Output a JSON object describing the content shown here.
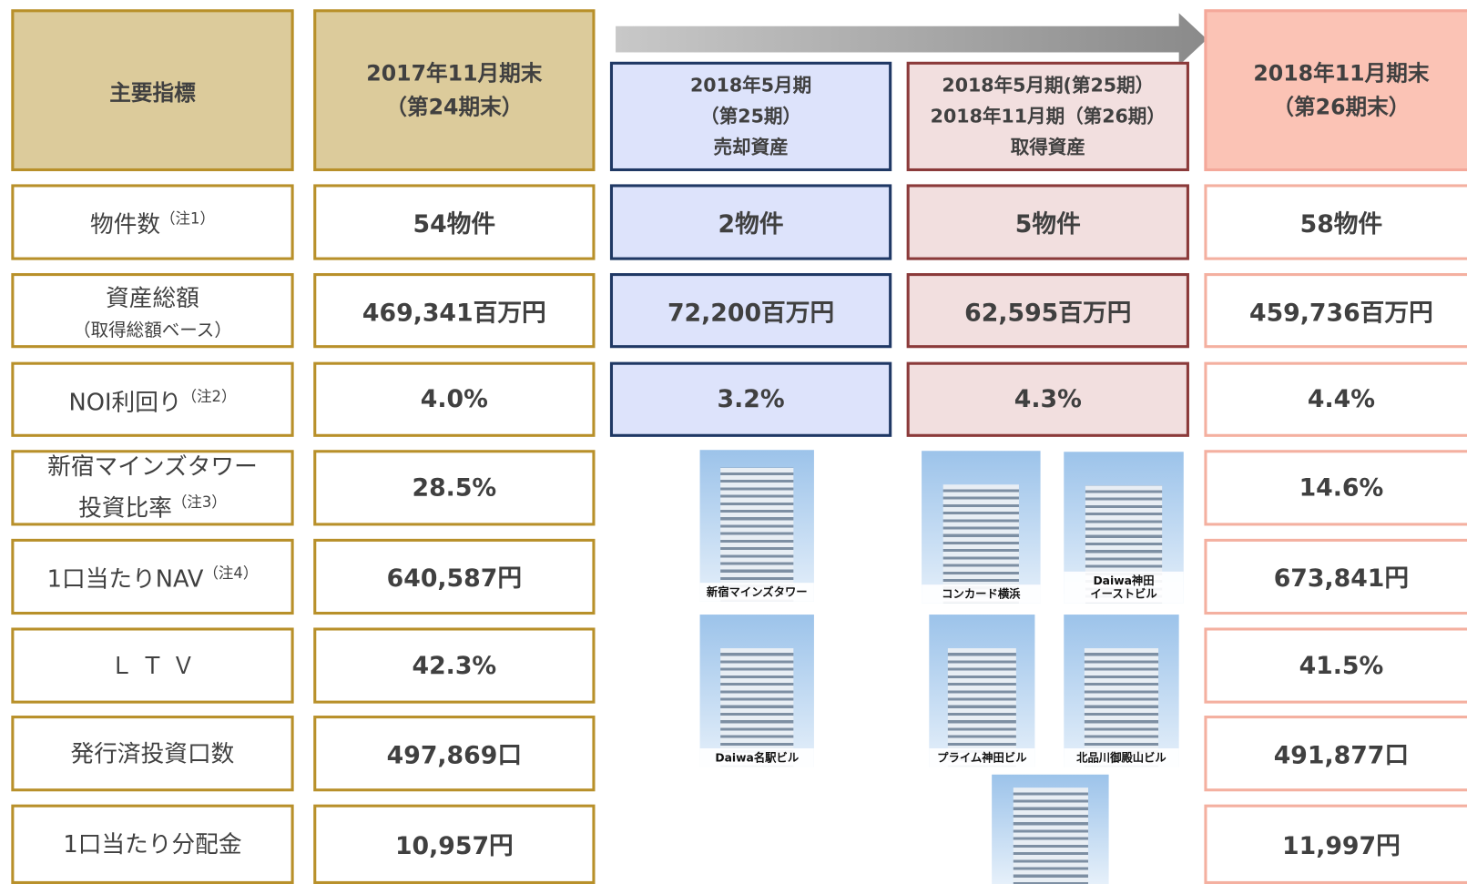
{
  "header": {
    "label": "主要指標",
    "col1": [
      "2017年11月期末",
      "（第24期末）"
    ],
    "col2": [
      "2018年5月期",
      "（第25期）",
      "売却資産"
    ],
    "col3": [
      "2018年5月期(第25期）",
      "2018年11月期（第26期）",
      "取得資産"
    ],
    "col4": [
      "2018年11月期末",
      "（第26期末）"
    ]
  },
  "rows": [
    {
      "label": [
        "物件数"
      ],
      "note": "（注1）",
      "values": [
        "54物件",
        "2物件",
        "5物件",
        "58物件"
      ]
    },
    {
      "label": [
        "資産総額",
        "（取得総額ベース）"
      ],
      "values": [
        "469,341百万円",
        "72,200百万円",
        "62,595百万円",
        "459,736百万円"
      ]
    },
    {
      "label": [
        "NOI利回り"
      ],
      "note": "（注2）",
      "values": [
        "4.0%",
        "3.2%",
        "4.3%",
        "4.4%"
      ]
    },
    {
      "label": [
        "新宿マインズタワー",
        "投資比率"
      ],
      "note": "（注3）",
      "values": [
        "28.5%",
        "14.6%"
      ]
    },
    {
      "label": [
        "1口当たりNAV"
      ],
      "note": "（注4）",
      "values": [
        "640,587円",
        "673,841円"
      ]
    },
    {
      "label": [
        "Ｌ Ｔ Ｖ"
      ],
      "values": [
        "42.3%",
        "41.5%"
      ]
    },
    {
      "label": [
        "発行済投資口数"
      ],
      "values": [
        "497,869口",
        "491,877口"
      ]
    },
    {
      "label": [
        "1口当たり分配金"
      ],
      "values": [
        "10,957円",
        "11,997円"
      ]
    }
  ],
  "sold_buildings": [
    "新宿マインズタワー",
    "Daiwa名駅ビル"
  ],
  "acquired_buildings": [
    "コンカード横浜",
    [
      "Daiwa神田",
      "イーストビル"
    ],
    "プライム神田ビル",
    "北品川御殿山ビル"
  ]
}
